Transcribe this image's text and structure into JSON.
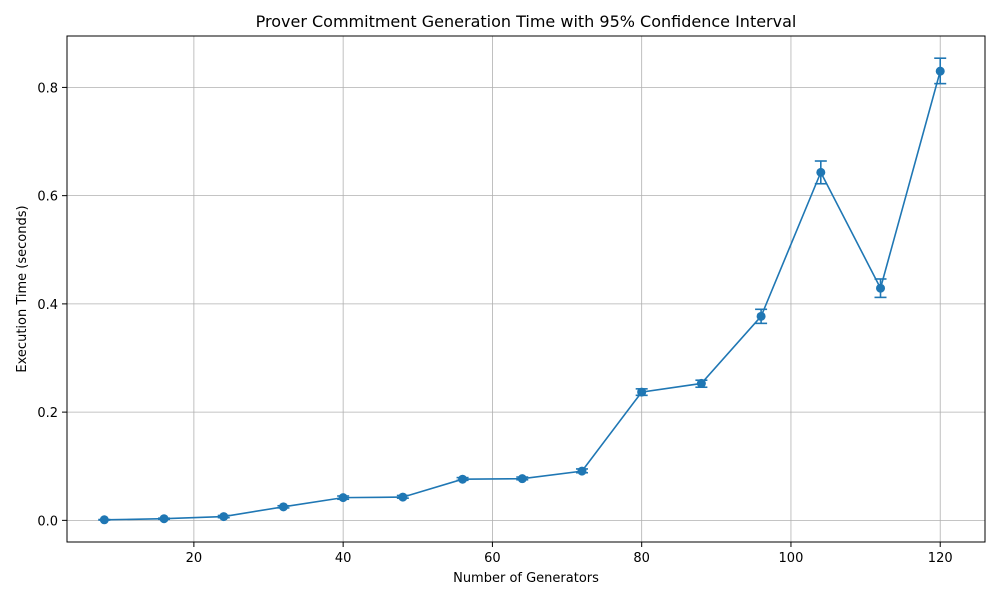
{
  "chart_data": {
    "type": "line",
    "title": "Prover Commitment Generation Time with 95% Confidence Interval",
    "xlabel": "Number of Generators",
    "ylabel": "Execution Time (seconds)",
    "xlim": [
      3,
      126
    ],
    "ylim": [
      -0.04,
      0.895
    ],
    "x_ticks": [
      20,
      40,
      60,
      80,
      100,
      120
    ],
    "y_ticks": [
      0.0,
      0.2,
      0.4,
      0.6,
      0.8
    ],
    "x_tick_labels": [
      "20",
      "40",
      "60",
      "80",
      "100",
      "120"
    ],
    "y_tick_labels": [
      "0.0",
      "0.2",
      "0.4",
      "0.6",
      "0.8"
    ],
    "grid": true,
    "legend": false,
    "color": "#1f77b4",
    "series": [
      {
        "x": [
          8,
          16,
          24,
          32,
          40,
          48,
          56,
          64,
          72,
          80,
          88,
          96,
          104,
          112,
          120
        ],
        "values": [
          0.001,
          0.003,
          0.007,
          0.025,
          0.042,
          0.043,
          0.076,
          0.077,
          0.091,
          0.237,
          0.253,
          0.377,
          0.643,
          0.429,
          0.83
        ],
        "ci_low": [
          0.0005,
          0.002,
          0.005,
          0.023,
          0.039,
          0.041,
          0.074,
          0.075,
          0.088,
          0.231,
          0.246,
          0.364,
          0.622,
          0.412,
          0.807
        ],
        "ci_high": [
          0.0015,
          0.004,
          0.009,
          0.027,
          0.045,
          0.046,
          0.079,
          0.08,
          0.095,
          0.243,
          0.259,
          0.39,
          0.664,
          0.446,
          0.854
        ]
      }
    ]
  }
}
